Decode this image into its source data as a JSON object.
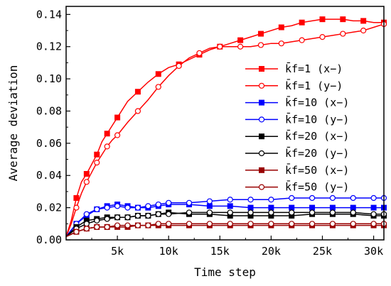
{
  "chart_data": {
    "type": "line",
    "xlabel": "Time step",
    "ylabel": "Average deviation",
    "xlim": [
      0,
      31000
    ],
    "ylim": [
      0,
      0.145
    ],
    "x_ticks": [
      5000,
      10000,
      15000,
      20000,
      25000,
      30000
    ],
    "x_tick_labels": [
      "5k",
      "10k",
      "15k",
      "20k",
      "25k",
      "30k"
    ],
    "y_ticks": [
      0,
      0.02,
      0.04,
      0.06,
      0.08,
      0.1,
      0.12,
      0.14
    ],
    "y_tick_labels": [
      "0.00",
      "0.02",
      "0.04",
      "0.06",
      "0.08",
      "0.10",
      "0.12",
      "0.14"
    ],
    "grid": false,
    "legend_position": "right",
    "series": [
      {
        "name": "k̄f=1 (x−)",
        "color": "#ff0000",
        "marker": "square-filled",
        "x": [
          0,
          500,
          1000,
          1500,
          2000,
          2500,
          3000,
          3500,
          4000,
          4500,
          5000,
          6000,
          7000,
          8000,
          9000,
          10000,
          11000,
          12000,
          13000,
          14000,
          15000,
          16000,
          17000,
          18000,
          19000,
          20000,
          21000,
          22000,
          23000,
          24000,
          25000,
          26000,
          27000,
          28000,
          29000,
          30000,
          31000
        ],
        "y": [
          0.002,
          0.012,
          0.026,
          0.036,
          0.041,
          0.047,
          0.053,
          0.061,
          0.066,
          0.071,
          0.076,
          0.086,
          0.092,
          0.098,
          0.103,
          0.107,
          0.109,
          0.112,
          0.115,
          0.118,
          0.12,
          0.122,
          0.124,
          0.126,
          0.128,
          0.13,
          0.132,
          0.133,
          0.135,
          0.136,
          0.137,
          0.137,
          0.137,
          0.136,
          0.136,
          0.135,
          0.135
        ]
      },
      {
        "name": "k̄f=1 (y−)",
        "color": "#ff0000",
        "marker": "circle-open",
        "x": [
          0,
          500,
          1000,
          1500,
          2000,
          2500,
          3000,
          3500,
          4000,
          4500,
          5000,
          6000,
          7000,
          8000,
          9000,
          10000,
          11000,
          12000,
          13000,
          14000,
          15000,
          16000,
          17000,
          18000,
          19000,
          20000,
          21000,
          22000,
          23000,
          24000,
          25000,
          26000,
          27000,
          28000,
          29000,
          30000,
          31000
        ],
        "y": [
          0.002,
          0.01,
          0.02,
          0.029,
          0.036,
          0.042,
          0.048,
          0.053,
          0.058,
          0.062,
          0.065,
          0.073,
          0.08,
          0.087,
          0.095,
          0.102,
          0.108,
          0.113,
          0.116,
          0.119,
          0.12,
          0.12,
          0.12,
          0.12,
          0.121,
          0.122,
          0.122,
          0.123,
          0.124,
          0.125,
          0.126,
          0.127,
          0.128,
          0.129,
          0.13,
          0.132,
          0.134
        ]
      },
      {
        "name": "k̄f=10 (x−)",
        "color": "#0000ff",
        "marker": "square-filled",
        "x": [
          0,
          1000,
          2000,
          3000,
          4000,
          5000,
          6000,
          7000,
          8000,
          9000,
          10000,
          12000,
          14000,
          16000,
          18000,
          20000,
          22000,
          24000,
          26000,
          28000,
          30000,
          31000
        ],
        "y": [
          0.002,
          0.01,
          0.015,
          0.019,
          0.021,
          0.022,
          0.021,
          0.02,
          0.02,
          0.021,
          0.022,
          0.022,
          0.021,
          0.021,
          0.02,
          0.02,
          0.02,
          0.02,
          0.02,
          0.02,
          0.02,
          0.02
        ]
      },
      {
        "name": "k̄f=10 (y−)",
        "color": "#0000ff",
        "marker": "circle-open",
        "x": [
          0,
          1000,
          2000,
          3000,
          4000,
          5000,
          6000,
          7000,
          8000,
          9000,
          10000,
          12000,
          14000,
          16000,
          18000,
          20000,
          22000,
          24000,
          26000,
          28000,
          30000,
          31000
        ],
        "y": [
          0.002,
          0.01,
          0.016,
          0.019,
          0.02,
          0.021,
          0.02,
          0.02,
          0.021,
          0.022,
          0.023,
          0.023,
          0.024,
          0.025,
          0.025,
          0.025,
          0.026,
          0.026,
          0.026,
          0.026,
          0.026,
          0.026
        ]
      },
      {
        "name": "k̄f=20 (x−)",
        "color": "#000000",
        "marker": "square-filled",
        "x": [
          0,
          1000,
          2000,
          3000,
          4000,
          5000,
          6000,
          7000,
          8000,
          9000,
          10000,
          12000,
          14000,
          16000,
          18000,
          20000,
          22000,
          24000,
          26000,
          28000,
          30000,
          31000
        ],
        "y": [
          0.002,
          0.008,
          0.012,
          0.013,
          0.014,
          0.014,
          0.014,
          0.015,
          0.015,
          0.016,
          0.017,
          0.016,
          0.016,
          0.015,
          0.015,
          0.015,
          0.015,
          0.016,
          0.016,
          0.016,
          0.015,
          0.015
        ]
      },
      {
        "name": "k̄f=20 (y−)",
        "color": "#000000",
        "marker": "circle-open",
        "x": [
          0,
          1000,
          2000,
          3000,
          4000,
          5000,
          6000,
          7000,
          8000,
          9000,
          10000,
          12000,
          14000,
          16000,
          18000,
          20000,
          22000,
          24000,
          26000,
          28000,
          30000,
          31000
        ],
        "y": [
          0.002,
          0.007,
          0.01,
          0.012,
          0.013,
          0.014,
          0.014,
          0.015,
          0.015,
          0.016,
          0.016,
          0.017,
          0.017,
          0.017,
          0.017,
          0.017,
          0.017,
          0.017,
          0.017,
          0.017,
          0.016,
          0.016
        ]
      },
      {
        "name": "k̄f=50 (x−)",
        "color": "#990000",
        "marker": "square-filled",
        "x": [
          0,
          1000,
          2000,
          3000,
          4000,
          5000,
          6000,
          7000,
          8000,
          9000,
          10000,
          12000,
          14000,
          16000,
          18000,
          20000,
          22000,
          24000,
          26000,
          28000,
          30000,
          31000
        ],
        "y": [
          0.002,
          0.005,
          0.007,
          0.008,
          0.008,
          0.008,
          0.008,
          0.009,
          0.009,
          0.009,
          0.009,
          0.009,
          0.009,
          0.009,
          0.009,
          0.009,
          0.009,
          0.009,
          0.009,
          0.009,
          0.009,
          0.009
        ]
      },
      {
        "name": "k̄f=50 (y−)",
        "color": "#990000",
        "marker": "circle-open",
        "x": [
          0,
          1000,
          2000,
          3000,
          4000,
          5000,
          6000,
          7000,
          8000,
          9000,
          10000,
          12000,
          14000,
          16000,
          18000,
          20000,
          22000,
          24000,
          26000,
          28000,
          30000,
          31000
        ],
        "y": [
          0.002,
          0.005,
          0.007,
          0.008,
          0.008,
          0.009,
          0.009,
          0.009,
          0.009,
          0.01,
          0.01,
          0.01,
          0.01,
          0.01,
          0.01,
          0.01,
          0.01,
          0.01,
          0.01,
          0.01,
          0.01,
          0.01
        ]
      }
    ]
  }
}
